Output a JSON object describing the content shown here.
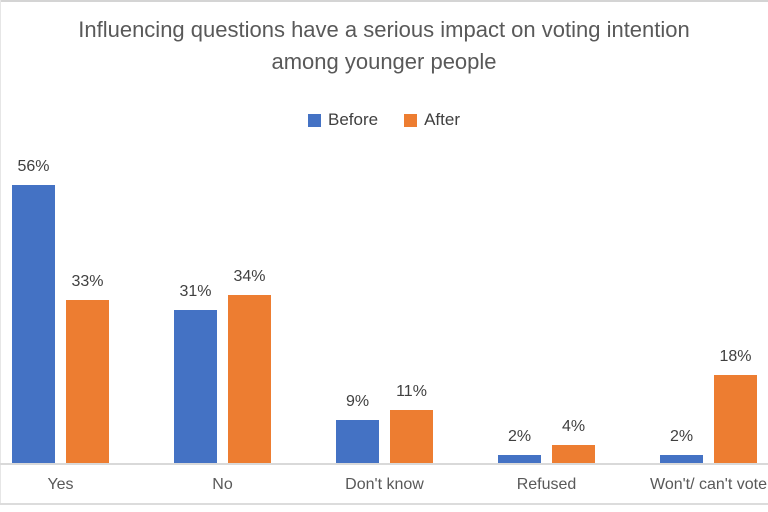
{
  "window": {
    "background": "#ffffff",
    "frame_color": "#d4d4d4"
  },
  "chart_data": {
    "type": "bar",
    "title": "Influencing questions have a serious impact on voting intention among younger people",
    "categories": [
      "Yes",
      "No",
      "Don't know",
      "Refused",
      "Won't/ can't vote"
    ],
    "series": [
      {
        "name": "Before",
        "color": "#4472C4",
        "values": [
          56,
          31,
          9,
          2,
          2
        ]
      },
      {
        "name": "After",
        "color": "#ED7D31",
        "values": [
          33,
          34,
          11,
          4,
          18
        ]
      }
    ],
    "data_labels": [
      "56%",
      "33%",
      "31%",
      "34%",
      "9%",
      "11%",
      "2%",
      "4%",
      "2%",
      "18%"
    ],
    "value_suffix": "%",
    "ylim": [
      0,
      60
    ],
    "gridlines": false,
    "y_axis_visible": false,
    "legend_position": "top",
    "title_color": "#595959",
    "value_label_color": "#404040",
    "category_label_color": "#595959",
    "axis_line_color": "#d9d9d9"
  }
}
